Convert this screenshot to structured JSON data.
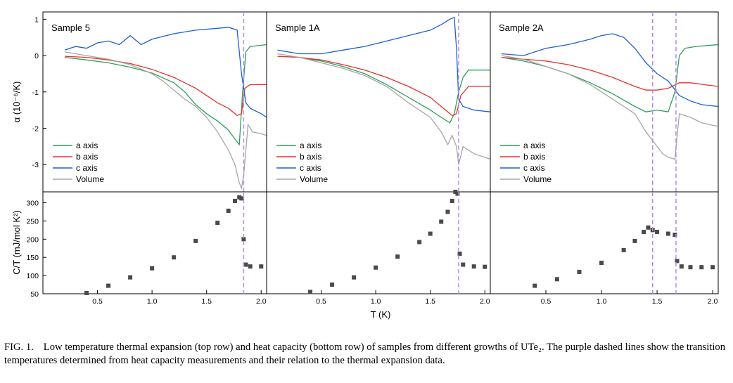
{
  "figure": {
    "y_label_top": "α (10⁻⁶/K)",
    "y_label_bottom": "C/T (mJ/mol K²)",
    "x_label": "T (K)",
    "top_yticks": [
      "1",
      "0",
      "-1",
      "-2",
      "-3"
    ],
    "top_ytick_values": [
      1,
      0,
      -1,
      -2,
      -3
    ],
    "bottom_yticks": [
      "300",
      "250",
      "200",
      "150",
      "100",
      "50"
    ],
    "bottom_ytick_values": [
      300,
      250,
      200,
      150,
      100,
      50
    ],
    "xticks": [
      "0.5",
      "1.0",
      "1.5",
      "2.0"
    ],
    "xtick_values": [
      0.5,
      1.0,
      1.5,
      2.0
    ],
    "legend": [
      "a axis",
      "b axis",
      "c axis",
      "Volume"
    ],
    "colors": {
      "a": "#2ca05a",
      "b": "#e8312d",
      "c": "#1f5fd6",
      "volume": "#a6a6a6",
      "heat": "#4a4a4a",
      "dashed": "#b48ce6"
    }
  },
  "chart_data": [
    {
      "type": "line",
      "title": "Sample 5",
      "xlabel": "",
      "ylabel": "α (10⁻⁶/K)",
      "xlim": [
        0,
        2.05
      ],
      "ylim": [
        -3.75,
        1.2
      ],
      "transitions": [
        1.84
      ],
      "series": [
        {
          "name": "a axis",
          "x": [
            0.2,
            0.4,
            0.6,
            0.8,
            1.0,
            1.2,
            1.3,
            1.4,
            1.5,
            1.6,
            1.7,
            1.76,
            1.8,
            1.83,
            1.86,
            1.9,
            2.05
          ],
          "y": [
            -0.05,
            -0.12,
            -0.2,
            -0.32,
            -0.48,
            -0.75,
            -1.0,
            -1.35,
            -1.6,
            -1.8,
            -2.05,
            -2.3,
            -2.45,
            -1.0,
            0.1,
            0.25,
            0.3
          ]
        },
        {
          "name": "b axis",
          "x": [
            0.2,
            0.4,
            0.6,
            0.8,
            1.0,
            1.2,
            1.4,
            1.5,
            1.6,
            1.7,
            1.78,
            1.82,
            1.85,
            1.9,
            2.05
          ],
          "y": [
            -0.02,
            -0.05,
            -0.12,
            -0.22,
            -0.38,
            -0.6,
            -0.9,
            -1.1,
            -1.3,
            -1.45,
            -1.65,
            -1.6,
            -0.9,
            -0.8,
            -0.8
          ]
        },
        {
          "name": "c axis",
          "x": [
            0.2,
            0.3,
            0.4,
            0.5,
            0.6,
            0.7,
            0.8,
            0.9,
            1.0,
            1.2,
            1.4,
            1.6,
            1.7,
            1.78,
            1.82,
            1.86,
            1.9,
            2.0,
            2.05
          ],
          "y": [
            0.15,
            0.25,
            0.2,
            0.35,
            0.4,
            0.3,
            0.55,
            0.3,
            0.45,
            0.6,
            0.7,
            0.75,
            0.78,
            0.7,
            -0.5,
            -1.3,
            -1.45,
            -1.6,
            -1.7
          ]
        },
        {
          "name": "Volume",
          "x": [
            0.2,
            0.4,
            0.6,
            0.8,
            1.0,
            1.1,
            1.2,
            1.3,
            1.4,
            1.5,
            1.6,
            1.7,
            1.76,
            1.8,
            1.82,
            1.84,
            1.88,
            1.92,
            2.0,
            2.05
          ],
          "y": [
            0.1,
            0.0,
            -0.1,
            -0.25,
            -0.5,
            -0.7,
            -0.95,
            -1.2,
            -1.4,
            -1.7,
            -2.1,
            -2.6,
            -3.0,
            -3.5,
            -3.65,
            -3.3,
            -1.9,
            -2.1,
            -2.15,
            -2.2
          ]
        }
      ]
    },
    {
      "type": "line",
      "title": "Sample 1A",
      "xlabel": "",
      "ylabel": "",
      "xlim": [
        0,
        2.05
      ],
      "ylim": [
        -3.75,
        1.2
      ],
      "transitions": [
        1.76
      ],
      "series": [
        {
          "name": "a axis",
          "x": [
            0.1,
            0.3,
            0.5,
            0.7,
            0.9,
            1.1,
            1.3,
            1.5,
            1.6,
            1.68,
            1.72,
            1.76,
            1.8,
            1.85,
            1.9,
            2.05
          ],
          "y": [
            -0.02,
            -0.05,
            -0.15,
            -0.3,
            -0.5,
            -0.8,
            -1.15,
            -1.5,
            -1.7,
            -1.85,
            -1.6,
            -1.0,
            -0.6,
            -0.4,
            -0.4,
            -0.4
          ]
        },
        {
          "name": "b axis",
          "x": [
            0.1,
            0.3,
            0.5,
            0.7,
            0.9,
            1.1,
            1.3,
            1.5,
            1.6,
            1.7,
            1.74,
            1.78,
            1.85,
            1.95,
            2.05
          ],
          "y": [
            -0.02,
            -0.05,
            -0.12,
            -0.25,
            -0.4,
            -0.6,
            -0.85,
            -1.15,
            -1.4,
            -1.65,
            -1.6,
            -1.1,
            -0.85,
            -0.85,
            -0.85
          ]
        },
        {
          "name": "c axis",
          "x": [
            0.1,
            0.3,
            0.5,
            0.7,
            0.9,
            1.1,
            1.3,
            1.5,
            1.6,
            1.68,
            1.72,
            1.74,
            1.76,
            1.8,
            1.9,
            2.05
          ],
          "y": [
            0.15,
            0.05,
            0.05,
            0.15,
            0.25,
            0.4,
            0.55,
            0.7,
            0.85,
            1.0,
            1.05,
            0.2,
            -1.2,
            -1.4,
            -1.5,
            -1.55
          ]
        },
        {
          "name": "Volume",
          "x": [
            0.1,
            0.3,
            0.5,
            0.7,
            0.9,
            1.1,
            1.3,
            1.5,
            1.6,
            1.66,
            1.7,
            1.74,
            1.76,
            1.8,
            1.9,
            2.05
          ],
          "y": [
            0.05,
            -0.05,
            -0.2,
            -0.35,
            -0.55,
            -0.85,
            -1.3,
            -1.7,
            -2.1,
            -2.45,
            -2.2,
            -2.5,
            -3.0,
            -2.5,
            -2.7,
            -2.85
          ]
        }
      ]
    },
    {
      "type": "line",
      "title": "Sample 2A",
      "xlabel": "",
      "ylabel": "",
      "xlim": [
        0,
        2.05
      ],
      "ylim": [
        -3.75,
        1.2
      ],
      "transitions": [
        1.46,
        1.67
      ],
      "series": [
        {
          "name": "a axis",
          "x": [
            0.1,
            0.3,
            0.5,
            0.7,
            0.9,
            1.1,
            1.3,
            1.4,
            1.5,
            1.6,
            1.66,
            1.7,
            1.75,
            1.85,
            2.05
          ],
          "y": [
            -0.05,
            -0.15,
            -0.3,
            -0.5,
            -0.75,
            -1.05,
            -1.4,
            -1.55,
            -1.5,
            -1.55,
            -1.0,
            0.0,
            0.2,
            0.25,
            0.3
          ]
        },
        {
          "name": "b axis",
          "x": [
            0.1,
            0.3,
            0.5,
            0.7,
            0.9,
            1.1,
            1.3,
            1.4,
            1.5,
            1.6,
            1.7,
            1.8,
            2.05
          ],
          "y": [
            -0.05,
            -0.1,
            -0.15,
            -0.25,
            -0.4,
            -0.6,
            -0.85,
            -0.95,
            -0.95,
            -0.9,
            -0.75,
            -0.75,
            -0.85
          ]
        },
        {
          "name": "c axis",
          "x": [
            0.1,
            0.3,
            0.5,
            0.7,
            0.9,
            1.0,
            1.1,
            1.2,
            1.3,
            1.4,
            1.5,
            1.6,
            1.7,
            1.8,
            1.9,
            2.05
          ],
          "y": [
            0.05,
            0.0,
            0.2,
            0.3,
            0.45,
            0.55,
            0.6,
            0.5,
            0.2,
            -0.2,
            -0.5,
            -0.7,
            -1.1,
            -1.25,
            -1.35,
            -1.4
          ]
        },
        {
          "name": "Volume",
          "x": [
            0.1,
            0.3,
            0.5,
            0.7,
            0.9,
            1.1,
            1.3,
            1.4,
            1.5,
            1.55,
            1.6,
            1.66,
            1.7,
            1.8,
            1.9,
            2.05
          ],
          "y": [
            0.0,
            -0.1,
            -0.3,
            -0.5,
            -0.8,
            -1.2,
            -1.6,
            -2.1,
            -2.5,
            -2.7,
            -2.8,
            -2.85,
            -1.6,
            -1.7,
            -1.85,
            -1.95
          ]
        }
      ]
    },
    {
      "type": "scatter",
      "title": "",
      "xlabel": "",
      "ylabel": "C/T (mJ/mol K²)",
      "xlim": [
        0,
        2.05
      ],
      "ylim": [
        50,
        330
      ],
      "transitions": [
        1.84
      ],
      "series": [
        {
          "name": "",
          "x": [
            0.4,
            0.6,
            0.8,
            1.0,
            1.2,
            1.4,
            1.6,
            1.7,
            1.76,
            1.8,
            1.82,
            1.84,
            1.86,
            1.9,
            2.0
          ],
          "y": [
            52,
            72,
            95,
            120,
            150,
            195,
            245,
            278,
            305,
            315,
            312,
            200,
            130,
            125,
            125
          ]
        }
      ]
    },
    {
      "type": "scatter",
      "title": "",
      "xlabel": "T (K)",
      "ylabel": "",
      "xlim": [
        0,
        2.05
      ],
      "ylim": [
        50,
        330
      ],
      "transitions": [
        1.76
      ],
      "series": [
        {
          "name": "",
          "x": [
            0.4,
            0.6,
            0.8,
            1.0,
            1.2,
            1.4,
            1.5,
            1.6,
            1.66,
            1.7,
            1.73,
            1.75,
            1.77,
            1.8,
            1.9,
            2.0
          ],
          "y": [
            55,
            75,
            95,
            122,
            152,
            192,
            215,
            248,
            275,
            305,
            330,
            325,
            160,
            130,
            125,
            124
          ]
        }
      ]
    },
    {
      "type": "scatter",
      "title": "",
      "xlabel": "",
      "ylabel": "",
      "xlim": [
        0,
        2.05
      ],
      "ylim": [
        50,
        330
      ],
      "transitions": [
        1.46,
        1.67
      ],
      "series": [
        {
          "name": "",
          "x": [
            0.4,
            0.6,
            0.8,
            1.0,
            1.2,
            1.3,
            1.38,
            1.42,
            1.46,
            1.5,
            1.6,
            1.66,
            1.68,
            1.72,
            1.8,
            1.9,
            2.0
          ],
          "y": [
            72,
            90,
            110,
            135,
            170,
            195,
            220,
            232,
            225,
            220,
            215,
            212,
            140,
            125,
            123,
            123,
            123
          ]
        }
      ]
    }
  ],
  "caption": {
    "label": "FIG. 1.",
    "text": "Low temperature thermal expansion (top row) and heat capacity (bottom row) of samples from different growths of UTe₂. The purple dashed lines show the transition temperatures determined from heat capacity measurements and their relation to the thermal expansion data."
  }
}
